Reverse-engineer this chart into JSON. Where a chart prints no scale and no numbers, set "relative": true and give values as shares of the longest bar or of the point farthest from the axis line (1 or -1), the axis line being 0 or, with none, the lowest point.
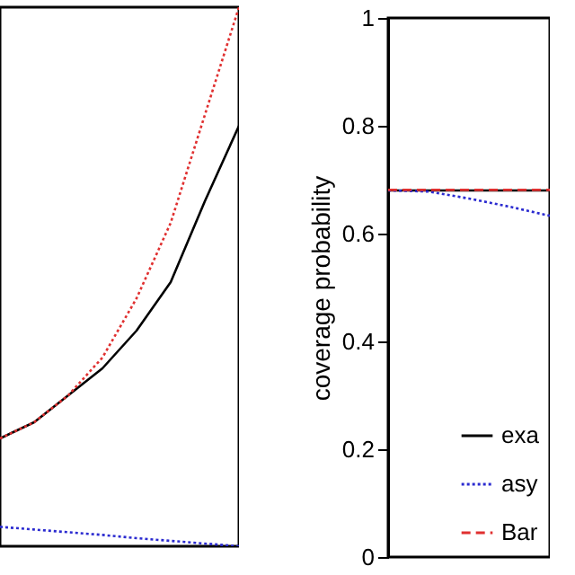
{
  "chart_data": [
    {
      "type": "line",
      "relative": true,
      "categories": [
        null,
        null,
        null,
        null,
        null,
        null,
        null,
        null
      ],
      "series": [
        {
          "color": "#000000",
          "line_style": "solid",
          "values": [
            0.2,
            0.23,
            0.28,
            0.33,
            0.4,
            0.49,
            0.64,
            0.78
          ]
        },
        {
          "color": "#2b2bd0",
          "line_style": "dotted",
          "values": [
            0.036,
            0.031,
            0.026,
            0.021,
            0.015,
            0.01,
            0.005,
            0
          ]
        },
        {
          "color": "#e03030",
          "line_style": "dotted",
          "values": [
            0.2,
            0.23,
            0.28,
            0.35,
            0.46,
            0.6,
            0.8,
            1
          ]
        }
      ],
      "legend": false
    },
    {
      "type": "line",
      "ylabel": "coverage probability",
      "ylim": [
        0,
        1
      ],
      "yticks": [
        0,
        0.2,
        0.4,
        0.6,
        0.8,
        1
      ],
      "categories": [
        null,
        null,
        null,
        null,
        null
      ],
      "series": [
        {
          "name": "exa",
          "color": "#000000",
          "line_style": "solid",
          "values": [
            0.68,
            0.68,
            0.68,
            0.68,
            0.68
          ]
        },
        {
          "name": "asy",
          "color": "#2b2bd0",
          "line_style": "dotted",
          "values": [
            0.68,
            0.678,
            0.665,
            0.65,
            0.633
          ]
        },
        {
          "name": "Bar",
          "color": "#e03030",
          "line_style": "dashed",
          "values": [
            0.681,
            0.681,
            0.681,
            0.681,
            0.681
          ]
        }
      ],
      "legend": "bottom right"
    }
  ]
}
